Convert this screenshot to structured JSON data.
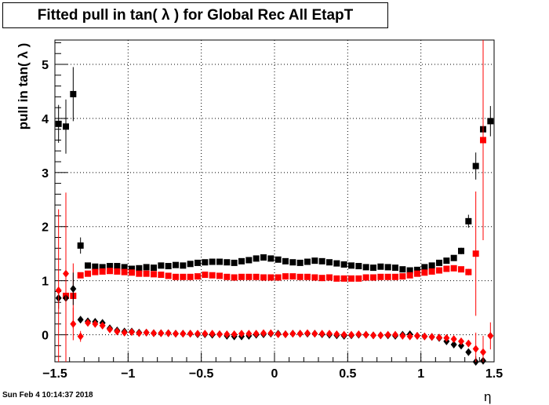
{
  "title": "Fitted pull in tan( λ ) for Global Rec All EtapT",
  "timestamp": "Sun Feb  4 10:14:37 2018",
  "chart_data": {
    "type": "scatter",
    "title": "Fitted pull in tan( λ ) for Global Rec All EtapT",
    "xlabel": "η",
    "ylabel": "pull in tan( λ )",
    "xlim": [
      -1.5,
      1.5
    ],
    "ylim": [
      -0.5,
      5.45
    ],
    "xticks": [
      -1.5,
      -1,
      -0.5,
      0,
      0.5,
      1,
      1.5
    ],
    "xtick_labels": [
      "−1.5",
      "−1",
      "−0.5",
      "0",
      "0.5",
      "1",
      "1.5"
    ],
    "yticks": [
      0,
      1,
      2,
      3,
      4,
      5
    ],
    "ytick_labels": [
      "0",
      "1",
      "2",
      "3",
      "4",
      "5"
    ],
    "grid": true,
    "colors": {
      "black": "#000000",
      "red": "#ff0000"
    },
    "series": [
      {
        "color": "#000000",
        "marker": "square",
        "x": [
          -1.475,
          -1.425,
          -1.375,
          -1.325,
          -1.275,
          -1.225,
          -1.175,
          -1.125,
          -1.075,
          -1.025,
          -0.975,
          -0.925,
          -0.875,
          -0.825,
          -0.775,
          -0.725,
          -0.675,
          -0.625,
          -0.575,
          -0.525,
          -0.475,
          -0.425,
          -0.375,
          -0.325,
          -0.275,
          -0.225,
          -0.175,
          -0.125,
          -0.075,
          -0.025,
          0.025,
          0.075,
          0.125,
          0.175,
          0.225,
          0.275,
          0.325,
          0.375,
          0.425,
          0.475,
          0.525,
          0.575,
          0.625,
          0.675,
          0.725,
          0.775,
          0.825,
          0.875,
          0.925,
          0.975,
          1.025,
          1.075,
          1.125,
          1.175,
          1.225,
          1.275,
          1.325,
          1.375,
          1.425,
          1.475
        ],
        "y": [
          3.9,
          3.85,
          4.45,
          1.65,
          1.28,
          1.26,
          1.25,
          1.27,
          1.27,
          1.25,
          1.22,
          1.23,
          1.25,
          1.24,
          1.28,
          1.27,
          1.29,
          1.28,
          1.31,
          1.33,
          1.34,
          1.35,
          1.35,
          1.34,
          1.33,
          1.36,
          1.38,
          1.41,
          1.43,
          1.41,
          1.39,
          1.36,
          1.34,
          1.33,
          1.35,
          1.37,
          1.36,
          1.34,
          1.32,
          1.3,
          1.28,
          1.27,
          1.25,
          1.24,
          1.26,
          1.25,
          1.24,
          1.21,
          1.19,
          1.2,
          1.25,
          1.28,
          1.33,
          1.37,
          1.42,
          1.55,
          2.1,
          3.12,
          3.8,
          3.95
        ],
        "err": [
          0.35,
          0.5,
          0.5,
          0.15,
          0.05,
          0.04,
          0.04,
          0.04,
          0.04,
          0.03,
          0.03,
          0.03,
          0.03,
          0.03,
          0.03,
          0.03,
          0.03,
          0.03,
          0.03,
          0.03,
          0.03,
          0.03,
          0.03,
          0.03,
          0.03,
          0.03,
          0.03,
          0.03,
          0.03,
          0.03,
          0.03,
          0.03,
          0.03,
          0.03,
          0.03,
          0.03,
          0.03,
          0.03,
          0.03,
          0.03,
          0.03,
          0.03,
          0.03,
          0.03,
          0.03,
          0.03,
          0.03,
          0.03,
          0.03,
          0.03,
          0.03,
          0.04,
          0.04,
          0.05,
          0.05,
          0.06,
          0.12,
          0.25,
          0.3,
          0.28
        ]
      },
      {
        "color": "#ff0000",
        "marker": "square",
        "x": [
          -1.425,
          -1.375,
          -1.325,
          -1.275,
          -1.225,
          -1.175,
          -1.125,
          -1.075,
          -1.025,
          -0.975,
          -0.925,
          -0.875,
          -0.825,
          -0.775,
          -0.725,
          -0.675,
          -0.625,
          -0.575,
          -0.525,
          -0.475,
          -0.425,
          -0.375,
          -0.325,
          -0.275,
          -0.225,
          -0.175,
          -0.125,
          -0.075,
          -0.025,
          0.025,
          0.075,
          0.125,
          0.175,
          0.225,
          0.275,
          0.325,
          0.375,
          0.425,
          0.475,
          0.525,
          0.575,
          0.625,
          0.675,
          0.725,
          0.775,
          0.825,
          0.875,
          0.925,
          0.975,
          1.025,
          1.075,
          1.125,
          1.175,
          1.225,
          1.275,
          1.325,
          1.375,
          1.425
        ],
        "y": [
          0.72,
          0.72,
          1.1,
          1.13,
          1.16,
          1.17,
          1.18,
          1.17,
          1.16,
          1.15,
          1.13,
          1.13,
          1.12,
          1.11,
          1.09,
          1.07,
          1.07,
          1.07,
          1.08,
          1.11,
          1.1,
          1.09,
          1.07,
          1.06,
          1.07,
          1.07,
          1.07,
          1.06,
          1.06,
          1.06,
          1.08,
          1.08,
          1.07,
          1.07,
          1.06,
          1.05,
          1.06,
          1.04,
          1.04,
          1.04,
          1.04,
          1.06,
          1.06,
          1.07,
          1.07,
          1.07,
          1.08,
          1.1,
          1.13,
          1.15,
          1.17,
          1.19,
          1.22,
          1.23,
          1.21,
          1.16,
          1.5,
          3.6
        ],
        "err": [
          1.9,
          0.6,
          0.04,
          0.03,
          0.03,
          0.03,
          0.03,
          0.03,
          0.03,
          0.03,
          0.03,
          0.03,
          0.03,
          0.03,
          0.03,
          0.03,
          0.03,
          0.03,
          0.03,
          0.03,
          0.03,
          0.03,
          0.03,
          0.03,
          0.03,
          0.03,
          0.03,
          0.03,
          0.03,
          0.03,
          0.03,
          0.03,
          0.03,
          0.03,
          0.03,
          0.03,
          0.03,
          0.03,
          0.03,
          0.03,
          0.03,
          0.03,
          0.03,
          0.03,
          0.03,
          0.03,
          0.03,
          0.03,
          0.03,
          0.03,
          0.03,
          0.03,
          0.03,
          0.04,
          0.05,
          0.06,
          1.15,
          1.85
        ]
      },
      {
        "color": "#000000",
        "marker": "diamond",
        "x": [
          -1.475,
          -1.425,
          -1.375,
          -1.325,
          -1.275,
          -1.225,
          -1.175,
          -1.125,
          -1.075,
          -1.025,
          -0.975,
          -0.925,
          -0.875,
          -0.825,
          -0.775,
          -0.725,
          -0.675,
          -0.625,
          -0.575,
          -0.525,
          -0.475,
          -0.425,
          -0.375,
          -0.325,
          -0.275,
          -0.225,
          -0.175,
          -0.125,
          -0.075,
          -0.025,
          0.025,
          0.075,
          0.125,
          0.175,
          0.225,
          0.275,
          0.325,
          0.375,
          0.425,
          0.475,
          0.525,
          0.575,
          0.625,
          0.675,
          0.725,
          0.775,
          0.825,
          0.875,
          0.925,
          0.975,
          1.025,
          1.075,
          1.125,
          1.175,
          1.225,
          1.275,
          1.325,
          1.375,
          1.425
        ],
        "y": [
          0.68,
          0.68,
          0.85,
          0.28,
          0.25,
          0.24,
          0.22,
          0.12,
          0.08,
          0.06,
          0.06,
          0.04,
          0.04,
          0.03,
          0.03,
          0.03,
          0.02,
          0.02,
          0.02,
          0.01,
          0.01,
          0.0,
          0.01,
          -0.02,
          -0.03,
          -0.03,
          -0.02,
          0.0,
          0.01,
          0.02,
          0.02,
          0.01,
          0.02,
          0.02,
          0.02,
          0.02,
          0.01,
          0.0,
          -0.01,
          -0.02,
          -0.01,
          0.0,
          0.0,
          -0.01,
          -0.01,
          -0.01,
          -0.02,
          0.0,
          0.01,
          -0.02,
          -0.03,
          -0.04,
          -0.06,
          -0.12,
          -0.18,
          -0.2,
          -0.32,
          -0.5,
          -0.48
        ],
        "err": [
          0.2,
          0.25,
          0.3,
          0.04,
          0.03,
          0.03,
          0.03,
          0.02,
          0.02,
          0.02,
          0.02,
          0.02,
          0.02,
          0.02,
          0.02,
          0.02,
          0.02,
          0.02,
          0.02,
          0.02,
          0.02,
          0.02,
          0.02,
          0.02,
          0.02,
          0.02,
          0.02,
          0.02,
          0.02,
          0.02,
          0.02,
          0.02,
          0.02,
          0.02,
          0.02,
          0.02,
          0.02,
          0.02,
          0.02,
          0.02,
          0.02,
          0.02,
          0.02,
          0.02,
          0.02,
          0.02,
          0.02,
          0.02,
          0.02,
          0.02,
          0.02,
          0.02,
          0.02,
          0.02,
          0.03,
          0.04,
          0.06,
          0.1,
          0.1
        ]
      },
      {
        "color": "#ff0000",
        "marker": "diamond",
        "x": [
          -1.475,
          -1.425,
          -1.375,
          -1.325,
          -1.275,
          -1.225,
          -1.175,
          -1.125,
          -1.075,
          -1.025,
          -0.975,
          -0.925,
          -0.875,
          -0.825,
          -0.775,
          -0.725,
          -0.675,
          -0.625,
          -0.575,
          -0.525,
          -0.475,
          -0.425,
          -0.375,
          -0.325,
          -0.275,
          -0.225,
          -0.175,
          -0.125,
          -0.075,
          -0.025,
          0.025,
          0.075,
          0.125,
          0.175,
          0.225,
          0.275,
          0.325,
          0.375,
          0.425,
          0.475,
          0.525,
          0.575,
          0.625,
          0.675,
          0.725,
          0.775,
          0.825,
          0.875,
          0.925,
          0.975,
          1.025,
          1.075,
          1.125,
          1.175,
          1.225,
          1.275,
          1.325,
          1.375,
          1.425,
          1.475
        ],
        "y": [
          0.82,
          1.13,
          0.2,
          -0.03,
          0.22,
          0.2,
          0.17,
          0.1,
          0.06,
          0.04,
          0.05,
          0.03,
          0.04,
          0.03,
          0.03,
          0.03,
          0.02,
          0.02,
          0.02,
          0.02,
          0.02,
          0.02,
          0.01,
          0.01,
          0.01,
          0.02,
          0.02,
          0.02,
          0.03,
          0.03,
          0.01,
          0.01,
          0.02,
          0.02,
          0.03,
          0.02,
          0.02,
          0.02,
          0.01,
          0.0,
          0.0,
          0.01,
          0.0,
          -0.01,
          -0.01,
          0.0,
          0.0,
          -0.02,
          -0.03,
          -0.02,
          -0.03,
          -0.04,
          -0.05,
          -0.06,
          -0.08,
          -0.12,
          -0.16,
          -0.26,
          -0.32,
          -0.02
        ],
        "err": [
          1.5,
          1.5,
          0.3,
          0.1,
          0.03,
          0.03,
          0.02,
          0.02,
          0.02,
          0.02,
          0.02,
          0.02,
          0.02,
          0.02,
          0.02,
          0.02,
          0.02,
          0.02,
          0.02,
          0.02,
          0.02,
          0.02,
          0.02,
          0.02,
          0.02,
          0.02,
          0.02,
          0.02,
          0.02,
          0.02,
          0.02,
          0.02,
          0.02,
          0.02,
          0.02,
          0.02,
          0.02,
          0.02,
          0.02,
          0.02,
          0.02,
          0.02,
          0.02,
          0.02,
          0.02,
          0.02,
          0.02,
          0.02,
          0.02,
          0.02,
          0.02,
          0.02,
          0.02,
          0.02,
          0.03,
          0.04,
          0.06,
          0.3,
          0.3,
          0.25
        ]
      }
    ]
  }
}
